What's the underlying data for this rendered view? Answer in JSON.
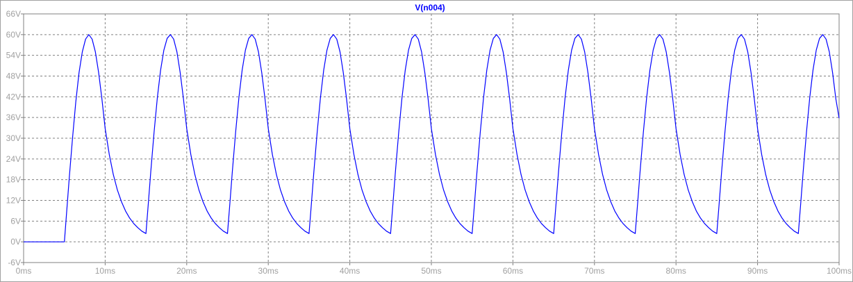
{
  "colors": {
    "trace": "#0000ff",
    "grid": "#808080",
    "tick_text": "#a0a0a0",
    "axis_frame": "#808080",
    "background": "#ffffff"
  },
  "chart_data": {
    "type": "line",
    "title": "V(n004)",
    "xlabel": "",
    "ylabel": "",
    "xlim": [
      0,
      100
    ],
    "ylim": [
      -6,
      66
    ],
    "grid": true,
    "legend": "none",
    "x_ticks": [
      "0ms",
      "10ms",
      "20ms",
      "30ms",
      "40ms",
      "50ms",
      "60ms",
      "70ms",
      "80ms",
      "90ms",
      "100ms"
    ],
    "y_ticks": [
      "66V",
      "60V",
      "54V",
      "48V",
      "42V",
      "36V",
      "30V",
      "24V",
      "18V",
      "12V",
      "6V",
      "0V",
      "-6V"
    ],
    "series": [
      {
        "name": "V(n004)",
        "x": [
          0,
          5,
          5.3,
          5.6,
          6,
          6.4,
          6.8,
          7.2,
          7.6,
          8,
          8.4,
          8.8,
          9.2,
          9.6,
          10,
          10.5,
          11,
          11.5,
          12,
          12.5,
          13,
          13.5,
          14,
          14.5,
          15,
          15.3,
          15.6,
          16,
          16.4,
          16.8,
          17.2,
          17.6,
          18,
          18.4,
          18.8,
          19.2,
          19.6,
          20,
          20.5,
          21,
          21.5,
          22,
          22.5,
          23,
          23.5,
          24,
          24.5,
          25,
          25.3,
          25.6,
          26,
          26.4,
          26.8,
          27.2,
          27.6,
          28,
          28.4,
          28.8,
          29.2,
          29.6,
          30,
          30.5,
          31,
          31.5,
          32,
          32.5,
          33,
          33.5,
          34,
          34.5,
          35,
          35.3,
          35.6,
          36,
          36.4,
          36.8,
          37.2,
          37.6,
          38,
          38.4,
          38.8,
          39.2,
          39.6,
          40,
          40.5,
          41,
          41.5,
          42,
          42.5,
          43,
          43.5,
          44,
          44.5,
          45,
          45.3,
          45.6,
          46,
          46.4,
          46.8,
          47.2,
          47.6,
          48,
          48.4,
          48.8,
          49.2,
          49.6,
          50,
          50.5,
          51,
          51.5,
          52,
          52.5,
          53,
          53.5,
          54,
          54.5,
          55,
          55.3,
          55.6,
          56,
          56.4,
          56.8,
          57.2,
          57.6,
          58,
          58.4,
          58.8,
          59.2,
          59.6,
          60,
          60.5,
          61,
          61.5,
          62,
          62.5,
          63,
          63.5,
          64,
          64.5,
          65,
          65.3,
          65.6,
          66,
          66.4,
          66.8,
          67.2,
          67.6,
          68,
          68.4,
          68.8,
          69.2,
          69.6,
          70,
          70.5,
          71,
          71.5,
          72,
          72.5,
          73,
          73.5,
          74,
          74.5,
          75,
          75.3,
          75.6,
          76,
          76.4,
          76.8,
          77.2,
          77.6,
          78,
          78.4,
          78.8,
          79.2,
          79.6,
          80,
          80.5,
          81,
          81.5,
          82,
          82.5,
          83,
          83.5,
          84,
          84.5,
          85,
          85.3,
          85.6,
          86,
          86.4,
          86.8,
          87.2,
          87.6,
          88,
          88.4,
          88.8,
          89.2,
          89.6,
          90,
          90.5,
          91,
          91.5,
          92,
          92.5,
          93,
          93.5,
          94,
          94.5,
          95,
          95.3,
          95.6,
          96,
          96.4,
          96.8,
          97.2,
          97.6,
          98,
          98.4,
          98.8,
          99.2,
          99.6,
          100
        ],
        "y": [
          0,
          0,
          9.3,
          18.5,
          30,
          40.5,
          49,
          55,
          58.7,
          60,
          58.7,
          55,
          49,
          41.4,
          32.8,
          25.3,
          19.5,
          15,
          11.6,
          8.9,
          6.9,
          5.3,
          4.1,
          3.1,
          2.4,
          11.3,
          20.4,
          31.7,
          41.7,
          49.7,
          55.5,
          58.9,
          60,
          58.7,
          55,
          49,
          41.4,
          32.8,
          25.3,
          19.5,
          15,
          11.6,
          8.9,
          6.9,
          5.3,
          4.1,
          3.1,
          2.4,
          11.3,
          20.4,
          31.7,
          41.7,
          49.7,
          55.5,
          58.9,
          60,
          58.7,
          55,
          49,
          41.4,
          32.8,
          25.3,
          19.5,
          15,
          11.6,
          8.9,
          6.9,
          5.3,
          4.1,
          3.1,
          2.4,
          11.3,
          20.4,
          31.7,
          41.7,
          49.7,
          55.5,
          58.9,
          60,
          58.7,
          55,
          49,
          41.4,
          32.8,
          25.3,
          19.5,
          15,
          11.6,
          8.9,
          6.9,
          5.3,
          4.1,
          3.1,
          2.4,
          11.3,
          20.4,
          31.7,
          41.7,
          49.7,
          55.5,
          58.9,
          60,
          58.7,
          55,
          49,
          41.4,
          32.8,
          25.3,
          19.5,
          15,
          11.6,
          8.9,
          6.9,
          5.3,
          4.1,
          3.1,
          2.4,
          11.3,
          20.4,
          31.7,
          41.7,
          49.7,
          55.5,
          58.9,
          60,
          58.7,
          55,
          49,
          41.4,
          32.8,
          25.3,
          19.5,
          15,
          11.6,
          8.9,
          6.9,
          5.3,
          4.1,
          3.1,
          2.4,
          11.3,
          20.4,
          31.7,
          41.7,
          49.7,
          55.5,
          58.9,
          60,
          58.7,
          55,
          49,
          41.4,
          32.8,
          25.3,
          19.5,
          15,
          11.6,
          8.9,
          6.9,
          5.3,
          4.1,
          3.1,
          2.4,
          11.3,
          20.4,
          31.7,
          41.7,
          49.7,
          55.5,
          58.9,
          60,
          58.7,
          55,
          49,
          41.4,
          32.8,
          25.3,
          19.5,
          15,
          11.6,
          8.9,
          6.9,
          5.3,
          4.1,
          3.1,
          2.4,
          11.3,
          20.4,
          31.7,
          41.7,
          49.7,
          55.5,
          58.9,
          60,
          58.7,
          55,
          49,
          41.4,
          32.8,
          25.3,
          19.5,
          15,
          11.6,
          8.9,
          6.9,
          5.3,
          4.1,
          3.1,
          2.4,
          11.3,
          20.4,
          31.7,
          41.7,
          49.7,
          55.5,
          58.9,
          60,
          58.7,
          55,
          49,
          41.4,
          35.8
        ]
      }
    ]
  }
}
